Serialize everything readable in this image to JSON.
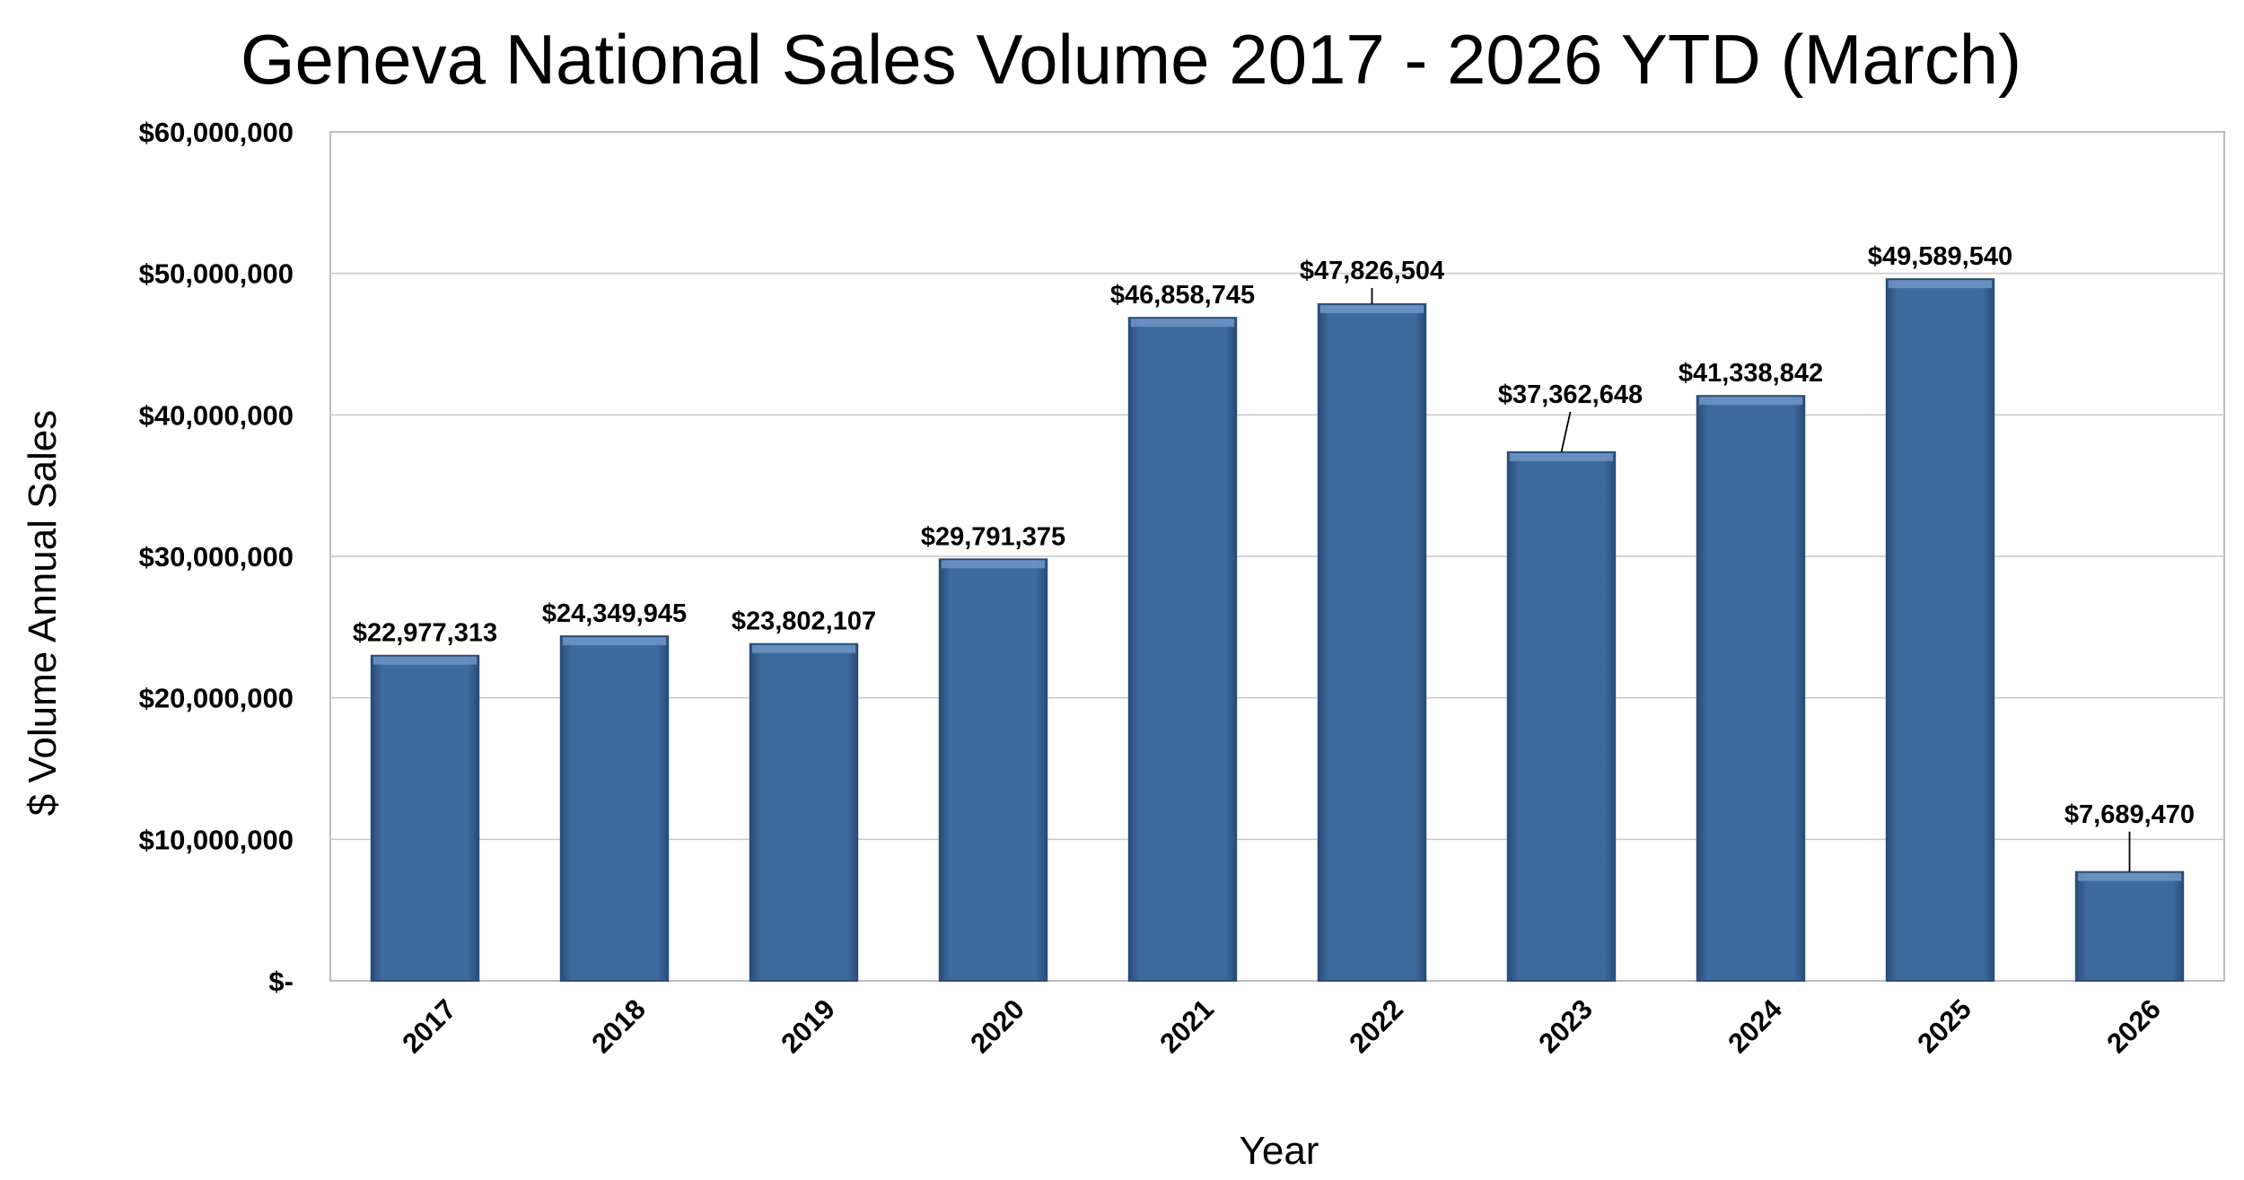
{
  "chart_data": {
    "type": "bar",
    "title": "Geneva National Sales Volume 2017 - 2026 YTD (March)",
    "xlabel": "Year",
    "ylabel": "$ Volume Annual Sales",
    "categories": [
      "2017",
      "2018",
      "2019",
      "2020",
      "2021",
      "2022",
      "2023",
      "2024",
      "2025",
      "2026"
    ],
    "values": [
      22977313,
      24349945,
      23802107,
      29791375,
      46858745,
      47826504,
      37362648,
      41338842,
      49589540,
      7689470
    ],
    "data_labels": [
      "$22,977,313",
      "$24,349,945",
      "$23,802,107",
      "$29,791,375",
      "$46,858,745",
      "$47,826,504",
      "$37,362,648",
      "$41,338,842",
      "$49,589,540",
      "$7,689,470"
    ],
    "ylim": [
      0,
      60000000
    ],
    "yticks": [
      0,
      10000000,
      20000000,
      30000000,
      40000000,
      50000000,
      60000000
    ],
    "ytick_labels": [
      "$-",
      "$10,000,000",
      "$20,000,000",
      "$30,000,000",
      "$40,000,000",
      "$50,000,000",
      "$60,000,000"
    ],
    "grid": true,
    "legend": "none",
    "colors": {
      "bar": "#3E6A9E",
      "bar_dark": "#2A4C78",
      "bar_light": "#6E95C4",
      "grid": "#C8C8C8",
      "axis": "#A6A6A6"
    }
  }
}
